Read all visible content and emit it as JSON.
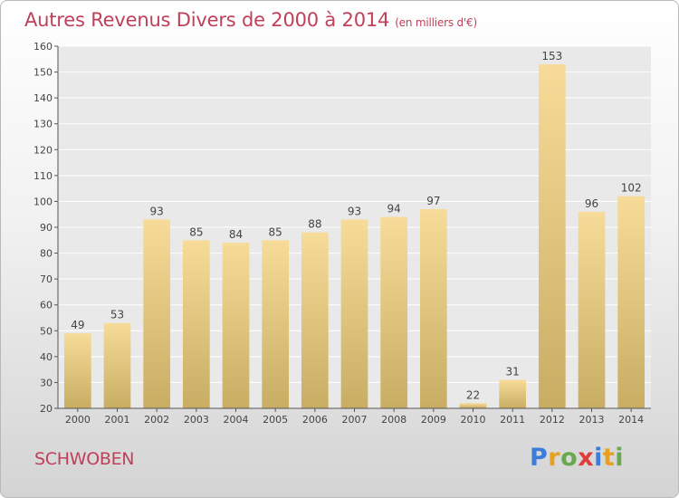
{
  "title": "Autres Revenus Divers de 2000 à 2014",
  "subtitle": "(en milliers d'€)",
  "commune": "SCHWOBEN",
  "logo": {
    "text": "Proxiti",
    "colors": [
      "#3b7dd8",
      "#e8a020",
      "#6aa84f",
      "#e03b3b",
      "#3b7dd8",
      "#e8a020",
      "#6aa84f"
    ]
  },
  "colors": {
    "title": "#c0405a",
    "bar_top": "#f6dc98",
    "bar_bottom": "#c8ad63",
    "axis": "#555555",
    "grid": "#ffffff"
  },
  "chart_data": {
    "type": "bar",
    "title": "Autres Revenus Divers de 2000 à 2014",
    "subtitle": "(en milliers d'€)",
    "categories": [
      "2000",
      "2001",
      "2002",
      "2003",
      "2004",
      "2005",
      "2006",
      "2007",
      "2008",
      "2009",
      "2010",
      "2011",
      "2012",
      "2013",
      "2014"
    ],
    "values": [
      49,
      53,
      93,
      85,
      84,
      85,
      88,
      93,
      94,
      97,
      22,
      31,
      153,
      96,
      102
    ],
    "ylim": [
      20,
      160
    ],
    "yticks": [
      20,
      30,
      40,
      50,
      60,
      70,
      80,
      90,
      100,
      110,
      120,
      130,
      140,
      150,
      160
    ],
    "grid": true,
    "data_labels": true
  }
}
